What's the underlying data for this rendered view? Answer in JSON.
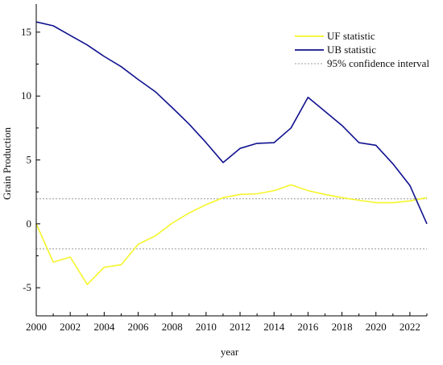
{
  "chart_data": {
    "type": "line",
    "xlabel": "year",
    "ylabel": "Grain Production",
    "xlim": [
      2000,
      2023
    ],
    "ylim": [
      -7.2,
      17.2
    ],
    "x_ticks": [
      "2000",
      "2002",
      "2004",
      "2006",
      "2008",
      "2010",
      "2012",
      "2014",
      "2016",
      "2018",
      "2020",
      "2022"
    ],
    "y_ticks": [
      "-5",
      "0",
      "5",
      "10",
      "15"
    ],
    "x": [
      2000,
      2001,
      2002,
      2003,
      2004,
      2005,
      2006,
      2007,
      2008,
      2009,
      2010,
      2011,
      2012,
      2013,
      2014,
      2015,
      2016,
      2017,
      2018,
      2019,
      2020,
      2021,
      2022,
      2023
    ],
    "series": [
      {
        "name": "UF statistic",
        "color": "#f5f52a",
        "values": [
          0.0,
          -3.0,
          -2.6,
          -4.75,
          -3.4,
          -3.2,
          -1.6,
          -0.95,
          0.05,
          0.85,
          1.5,
          2.05,
          2.3,
          2.35,
          2.6,
          3.05,
          2.6,
          2.3,
          2.05,
          1.85,
          1.65,
          1.65,
          1.8,
          2.05
        ]
      },
      {
        "name": "UB  statistic",
        "color": "#10128f",
        "values": [
          15.8,
          15.5,
          14.75,
          14.0,
          13.1,
          12.3,
          11.3,
          10.35,
          9.1,
          7.8,
          6.35,
          4.8,
          5.9,
          6.3,
          6.35,
          7.5,
          9.9,
          8.8,
          7.7,
          6.35,
          6.15,
          4.7,
          3.0,
          0.0
        ]
      }
    ],
    "reference_lines": {
      "name": "95% confidence interval",
      "color": "#999999",
      "values": [
        1.96,
        -1.96
      ]
    },
    "legend_position": "top-right",
    "grid": false
  }
}
